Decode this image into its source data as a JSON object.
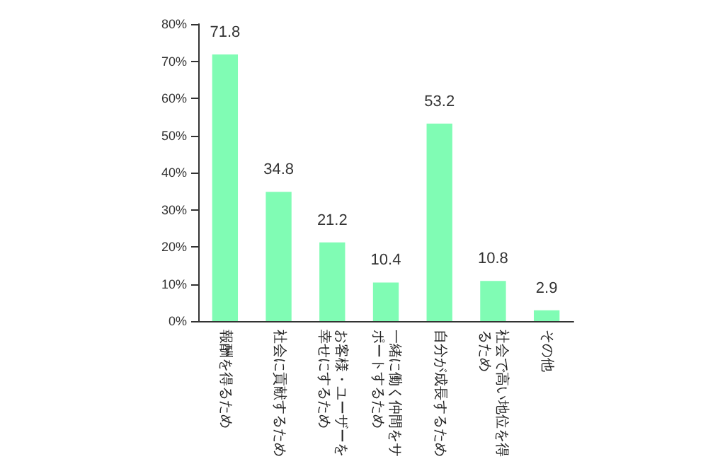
{
  "chart_data": {
    "type": "bar",
    "categories": [
      "報酬を得るため",
      "社会に貢献するため",
      "お客様・ユーザーを幸せにするため",
      "一緒に働く仲間をサポートするため",
      "自分が成長するため",
      "社会で高い地位を得るため",
      "その他"
    ],
    "values": [
      71.8,
      34.8,
      21.2,
      10.4,
      53.2,
      10.8,
      2.9
    ],
    "color": "#80fcb4",
    "ylim": [
      0,
      80
    ],
    "yticks": [
      {
        "value": 0,
        "label": "0%"
      },
      {
        "value": 10,
        "label": "10%"
      },
      {
        "value": 20,
        "label": "20%"
      },
      {
        "value": 30,
        "label": "30%"
      },
      {
        "value": 40,
        "label": "40%"
      },
      {
        "value": 50,
        "label": "50%"
      },
      {
        "value": 60,
        "label": "60%"
      },
      {
        "value": 70,
        "label": "70%"
      },
      {
        "value": 80,
        "label": "80%"
      }
    ],
    "data_labels": true,
    "grid": false
  }
}
